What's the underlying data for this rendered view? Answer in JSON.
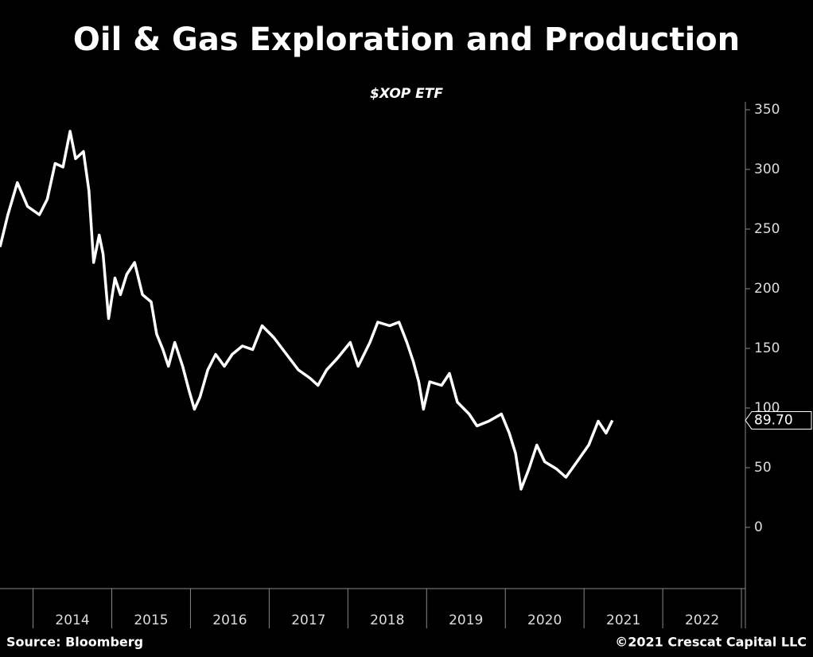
{
  "chart_data": {
    "type": "line",
    "title": "Oil & Gas Exploration and Production",
    "subtitle": "$XOP ETF",
    "source": "Source: Bloomberg",
    "credit": "©2021 Crescat Capital LLC",
    "x": [
      2013.58,
      2013.68,
      2013.8,
      2013.93,
      2014.08,
      2014.18,
      2014.28,
      2014.38,
      2014.47,
      2014.54,
      2014.64,
      2014.71,
      2014.77,
      2014.84,
      2014.89,
      2014.96,
      2015.04,
      2015.11,
      2015.19,
      2015.29,
      2015.39,
      2015.5,
      2015.57,
      2015.65,
      2015.72,
      2015.8,
      2015.9,
      2015.98,
      2016.05,
      2016.12,
      2016.22,
      2016.32,
      2016.43,
      2016.53,
      2016.66,
      2016.79,
      2016.91,
      2017.06,
      2017.22,
      2017.37,
      2017.52,
      2017.62,
      2017.73,
      2017.87,
      2018.03,
      2018.13,
      2018.28,
      2018.38,
      2018.53,
      2018.65,
      2018.75,
      2018.83,
      2018.9,
      2018.96,
      2019.04,
      2019.19,
      2019.29,
      2019.39,
      2019.54,
      2019.64,
      2019.79,
      2019.95,
      2020.05,
      2020.13,
      2020.2,
      2020.3,
      2020.4,
      2020.5,
      2020.65,
      2020.77,
      2020.91,
      2021.06,
      2021.18,
      2021.28,
      2021.36
    ],
    "series": [
      {
        "name": "$XOP",
        "color": "#ffffff",
        "values": [
          235,
          262,
          289,
          269,
          262,
          275,
          305,
          302,
          332,
          309,
          315,
          282,
          222,
          245,
          229,
          175,
          209,
          195,
          212,
          222,
          195,
          189,
          162,
          149,
          135,
          155,
          135,
          115,
          99,
          109,
          132,
          145,
          135,
          145,
          152,
          149,
          169,
          159,
          145,
          132,
          125,
          119,
          132,
          142,
          155,
          135,
          155,
          172,
          169,
          172,
          155,
          139,
          122,
          99,
          122,
          119,
          129,
          105,
          95,
          85,
          89,
          95,
          79,
          62,
          32,
          49,
          69,
          55,
          49,
          42,
          55,
          69,
          89,
          79,
          89.7
        ]
      }
    ],
    "last_value_label": "89.70",
    "xlim": [
      2013.58,
      2023.05
    ],
    "xticks": [
      2014,
      2015,
      2016,
      2017,
      2018,
      2019,
      2020,
      2021,
      2022
    ],
    "ylim": [
      -50,
      360
    ],
    "yticks": [
      0,
      50,
      100,
      150,
      200,
      250,
      300,
      350
    ]
  }
}
